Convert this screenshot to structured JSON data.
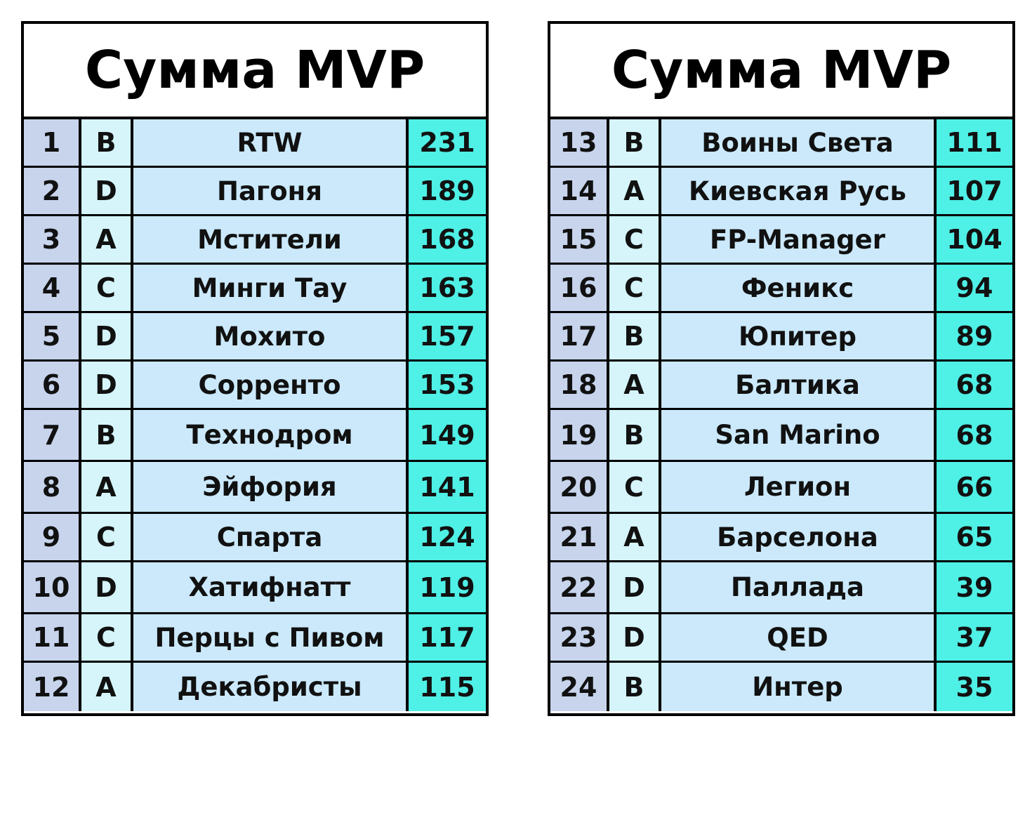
{
  "tables": [
    {
      "title": "Сумма MVP",
      "rows": [
        {
          "rank": "1",
          "div": "B",
          "team": "RTW",
          "value": "231"
        },
        {
          "rank": "2",
          "div": "D",
          "team": "Пагоня",
          "value": "189"
        },
        {
          "rank": "3",
          "div": "A",
          "team": "Мстители",
          "value": "168"
        },
        {
          "rank": "4",
          "div": "C",
          "team": "Минги Тау",
          "value": "163"
        },
        {
          "rank": "5",
          "div": "D",
          "team": "Мохито",
          "value": "157"
        },
        {
          "rank": "6",
          "div": "D",
          "team": "Сорренто",
          "value": "153"
        },
        {
          "rank": "7",
          "div": "B",
          "team": "Технодром",
          "value": "149"
        },
        {
          "rank": "8",
          "div": "A",
          "team": "Эйфория",
          "value": "141"
        },
        {
          "rank": "9",
          "div": "C",
          "team": "Спарта",
          "value": "124"
        },
        {
          "rank": "10",
          "div": "D",
          "team": "Хатифнатт",
          "value": "119"
        },
        {
          "rank": "11",
          "div": "C",
          "team": "Перцы с Пивом",
          "value": "117"
        },
        {
          "rank": "12",
          "div": "A",
          "team": "Декабристы",
          "value": "115"
        }
      ]
    },
    {
      "title": "Сумма MVP",
      "rows": [
        {
          "rank": "13",
          "div": "B",
          "team": "Воины Света",
          "value": "111"
        },
        {
          "rank": "14",
          "div": "A",
          "team": "Киевская Русь",
          "value": "107"
        },
        {
          "rank": "15",
          "div": "C",
          "team": "FP-Manager",
          "value": "104"
        },
        {
          "rank": "16",
          "div": "C",
          "team": "Феникс",
          "value": "94"
        },
        {
          "rank": "17",
          "div": "B",
          "team": "Юпитер",
          "value": "89"
        },
        {
          "rank": "18",
          "div": "A",
          "team": "Балтика",
          "value": "68"
        },
        {
          "rank": "19",
          "div": "B",
          "team": "San Marino",
          "value": "68"
        },
        {
          "rank": "20",
          "div": "C",
          "team": "Легион",
          "value": "66"
        },
        {
          "rank": "21",
          "div": "A",
          "team": "Барселона",
          "value": "65"
        },
        {
          "rank": "22",
          "div": "D",
          "team": "Паллада",
          "value": "39"
        },
        {
          "rank": "23",
          "div": "D",
          "team": "QED",
          "value": "37"
        },
        {
          "rank": "24",
          "div": "B",
          "team": "Интер",
          "value": "35"
        }
      ]
    }
  ],
  "colors": {
    "rank_bg": "#c7d4ec",
    "division_bg": "#d5f5fb",
    "team_bg": "#cbe9fb",
    "value_bg": "#4ff0e6",
    "border": "#000000"
  }
}
